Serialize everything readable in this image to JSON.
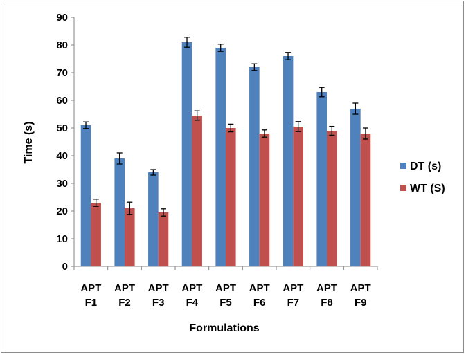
{
  "chart_data": {
    "type": "bar",
    "title": "",
    "xlabel": "Formulations",
    "ylabel": "Time (s)",
    "ylim": [
      0,
      90
    ],
    "yticks": [
      0,
      10,
      20,
      30,
      40,
      50,
      60,
      70,
      80,
      90
    ],
    "categories": [
      [
        "APT",
        "F1"
      ],
      [
        "APT",
        "F2"
      ],
      [
        "APT",
        "F3"
      ],
      [
        "APT",
        "F4"
      ],
      [
        "APT",
        "F5"
      ],
      [
        "APT",
        "F6"
      ],
      [
        "APT",
        "F7"
      ],
      [
        "APT",
        "F8"
      ],
      [
        "APT",
        "F9"
      ]
    ],
    "series": [
      {
        "name": "DT (s)",
        "color": "#4f81bd",
        "values": [
          51,
          39,
          34,
          81,
          79,
          72,
          76,
          63,
          57
        ],
        "errors": [
          1.2,
          2.0,
          1.0,
          1.8,
          1.3,
          1.2,
          1.3,
          1.7,
          2.0
        ]
      },
      {
        "name": "WT (S)",
        "color": "#c0504d",
        "values": [
          23,
          21,
          19.5,
          54.5,
          50,
          48,
          50.5,
          49,
          48
        ],
        "errors": [
          1.3,
          2.2,
          1.3,
          1.7,
          1.4,
          1.3,
          1.8,
          1.6,
          2.0
        ]
      }
    ],
    "grid": false,
    "legend_position": "right"
  }
}
